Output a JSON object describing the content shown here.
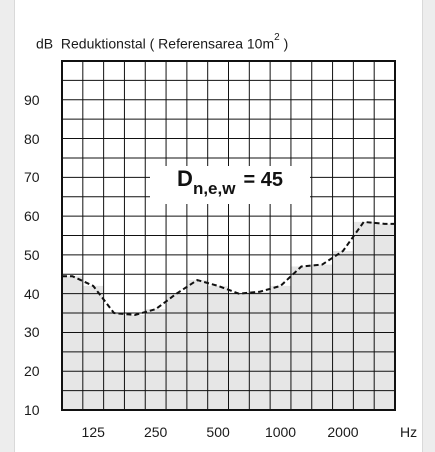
{
  "chart_data": {
    "type": "area",
    "header": {
      "unit": "dB",
      "title_main": "Reduktionstal ( Referensarea  10m",
      "title_sup": "2",
      "title_end": " )"
    },
    "x_unit": "Hz",
    "x_tick_labels": [
      "125",
      "250",
      "500",
      "1000",
      "2000"
    ],
    "y_ticks": [
      10,
      20,
      30,
      40,
      50,
      60,
      70,
      80,
      90
    ],
    "ylim": [
      10,
      100
    ],
    "grid": true,
    "rating": {
      "symbol": "D",
      "subscript": "n,e,w",
      "value_text": " = 45"
    },
    "series": [
      {
        "frequencies": [
          100,
          125,
          160,
          200,
          250,
          315,
          400,
          500,
          630,
          800,
          1000,
          1250,
          1600,
          2000,
          2500,
          3150
        ],
        "values": [
          44.5,
          42,
          35,
          34.5,
          36,
          40,
          43.5,
          42,
          40,
          40.5,
          42,
          47,
          47.5,
          51,
          58.5,
          58
        ]
      }
    ],
    "colors": {
      "fill": "#e6e6e6",
      "line": "#111111",
      "grid": "#111111"
    }
  }
}
